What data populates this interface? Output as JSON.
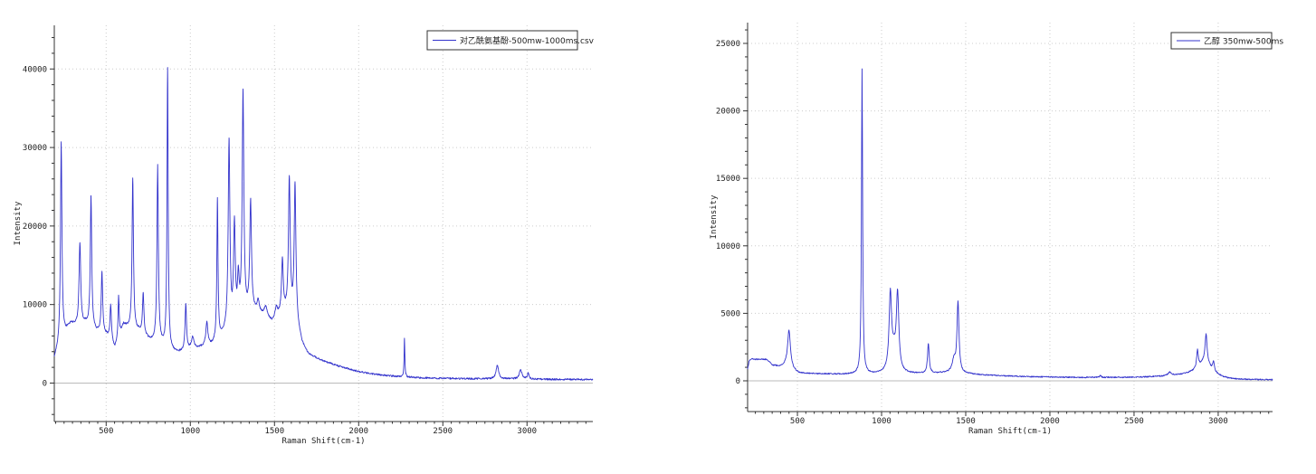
{
  "page": {
    "background": "#ffffff"
  },
  "chart_data": [
    {
      "type": "line",
      "title": "",
      "legend": "对乙酰氨基酚-500mw-1000ms.csv",
      "legend_position": "top-right",
      "xlabel": "Raman Shift(cm-1)",
      "ylabel": "Intensity",
      "xlim": [
        192,
        3391
      ],
      "ylim": [
        -4900,
        45560
      ],
      "xticks": [
        500,
        1000,
        1500,
        2000,
        2500,
        3000
      ],
      "yticks": [
        0,
        10000,
        20000,
        30000,
        40000
      ],
      "x_minor_step": 50,
      "y_minor_step": 2000,
      "grid": "dotted",
      "line_color": "#3333cc",
      "axis_color": "#333333",
      "grid_color": "#cccccc",
      "zero_line_color": "#bbbbbb",
      "noise": 110,
      "noise_seed": 97,
      "series_model": "intensity(x) = interp(baseline) + sum of lorentzian peaks [center_cm-1, height, hwhm_cm-1]",
      "peaks": [
        [
          233,
          25300,
          5
        ],
        [
          344,
          10800,
          6
        ],
        [
          410,
          16800,
          5
        ],
        [
          475,
          7800,
          5
        ],
        [
          527,
          4600,
          5
        ],
        [
          574,
          5300,
          4
        ],
        [
          658,
          19400,
          5
        ],
        [
          720,
          5200,
          5
        ],
        [
          806,
          22500,
          5
        ],
        [
          865,
          35500,
          4
        ],
        [
          973,
          5900,
          5
        ],
        [
          1014,
          1400,
          8
        ],
        [
          1098,
          3000,
          7
        ],
        [
          1161,
          17900,
          4
        ],
        [
          1230,
          23900,
          6
        ],
        [
          1262,
          12500,
          6
        ],
        [
          1285,
          5000,
          6
        ],
        [
          1313,
          28500,
          6
        ],
        [
          1358,
          13800,
          6
        ],
        [
          1403,
          1500,
          8
        ],
        [
          1448,
          1300,
          12
        ],
        [
          1511,
          1300,
          8
        ],
        [
          1547,
          6800,
          6
        ],
        [
          1588,
          16900,
          6
        ],
        [
          1622,
          17300,
          6
        ],
        [
          2272,
          5000,
          2.5
        ],
        [
          2824,
          1750,
          9
        ],
        [
          2962,
          1150,
          10
        ],
        [
          3007,
          800,
          5
        ]
      ],
      "baseline": [
        [
          192,
          3100
        ],
        [
          240,
          5800
        ],
        [
          290,
          7500
        ],
        [
          345,
          7000
        ],
        [
          378,
          7500
        ],
        [
          440,
          6500
        ],
        [
          505,
          6000
        ],
        [
          552,
          4400
        ],
        [
          604,
          7400
        ],
        [
          660,
          6500
        ],
        [
          692,
          6600
        ],
        [
          760,
          5400
        ],
        [
          808,
          5000
        ],
        [
          842,
          4700
        ],
        [
          885,
          4100
        ],
        [
          925,
          3800
        ],
        [
          1000,
          4300
        ],
        [
          1062,
          4500
        ],
        [
          1130,
          4800
        ],
        [
          1205,
          6200
        ],
        [
          1262,
          7100
        ],
        [
          1315,
          8100
        ],
        [
          1362,
          9100
        ],
        [
          1425,
          8500
        ],
        [
          1485,
          7700
        ],
        [
          1540,
          8700
        ],
        [
          1592,
          8900
        ],
        [
          1633,
          7400
        ],
        [
          1665,
          4900
        ],
        [
          1700,
          3700
        ],
        [
          1755,
          3100
        ],
        [
          1810,
          2650
        ],
        [
          1865,
          2250
        ],
        [
          1920,
          1900
        ],
        [
          1980,
          1550
        ],
        [
          2040,
          1300
        ],
        [
          2105,
          1100
        ],
        [
          2170,
          950
        ],
        [
          2240,
          820
        ],
        [
          2320,
          720
        ],
        [
          2420,
          640
        ],
        [
          2540,
          590
        ],
        [
          2680,
          550
        ],
        [
          2830,
          530
        ],
        [
          2990,
          500
        ],
        [
          3150,
          470
        ],
        [
          3391,
          440
        ]
      ]
    },
    {
      "type": "line",
      "title": "",
      "legend": "乙醇 350mw-500ms",
      "legend_position": "top-right",
      "xlabel": "Raman Shift(cm-1)",
      "ylabel": "Intensity",
      "xlim": [
        204,
        3323
      ],
      "ylim": [
        -2280,
        26540
      ],
      "xticks": [
        500,
        1000,
        1500,
        2000,
        2500,
        3000
      ],
      "yticks": [
        0,
        5000,
        10000,
        15000,
        20000,
        25000
      ],
      "x_minor_step": 50,
      "y_minor_step": 1000,
      "grid": "dotted",
      "line_color": "#3333cc",
      "axis_color": "#333333",
      "grid_color": "#cccccc",
      "zero_line_color": "#bbbbbb",
      "noise": 45,
      "noise_seed": 193,
      "series_model": "intensity(x) = interp(baseline) + sum of lorentzian peaks [center_cm-1, height, hwhm_cm-1]",
      "peaks": [
        [
          450,
          2800,
          10
        ],
        [
          884,
          22550,
          4
        ],
        [
          1052,
          5650,
          9
        ],
        [
          1073,
          1200,
          14
        ],
        [
          1095,
          5650,
          9
        ],
        [
          1278,
          2200,
          6
        ],
        [
          1430,
          900,
          12
        ],
        [
          1454,
          5200,
          7
        ],
        [
          2300,
          150,
          5
        ],
        [
          2712,
          250,
          12
        ],
        [
          2877,
          1300,
          6
        ],
        [
          2920,
          900,
          45
        ],
        [
          2928,
          2100,
          7
        ],
        [
          2972,
          700,
          6
        ]
      ],
      "baseline": [
        [
          204,
          900
        ],
        [
          213,
          1450
        ],
        [
          228,
          1650
        ],
        [
          252,
          1580
        ],
        [
          285,
          1610
        ],
        [
          318,
          1560
        ],
        [
          352,
          1150
        ],
        [
          390,
          1060
        ],
        [
          430,
          1100
        ],
        [
          470,
          800
        ],
        [
          510,
          560
        ],
        [
          600,
          520
        ],
        [
          700,
          500
        ],
        [
          800,
          480
        ],
        [
          884,
          500
        ],
        [
          960,
          500
        ],
        [
          1020,
          540
        ],
        [
          1073,
          560
        ],
        [
          1160,
          520
        ],
        [
          1240,
          520
        ],
        [
          1330,
          560
        ],
        [
          1400,
          600
        ],
        [
          1454,
          560
        ],
        [
          1530,
          500
        ],
        [
          1600,
          430
        ],
        [
          1700,
          380
        ],
        [
          1800,
          330
        ],
        [
          1900,
          300
        ],
        [
          2000,
          280
        ],
        [
          2100,
          260
        ],
        [
          2200,
          250
        ],
        [
          2300,
          250
        ],
        [
          2400,
          250
        ],
        [
          2500,
          260
        ],
        [
          2600,
          290
        ],
        [
          2700,
          340
        ],
        [
          2780,
          420
        ],
        [
          2850,
          500
        ],
        [
          2920,
          520
        ],
        [
          2990,
          300
        ],
        [
          3040,
          160
        ],
        [
          3100,
          100
        ],
        [
          3200,
          80
        ],
        [
          3323,
          70
        ]
      ]
    }
  ]
}
